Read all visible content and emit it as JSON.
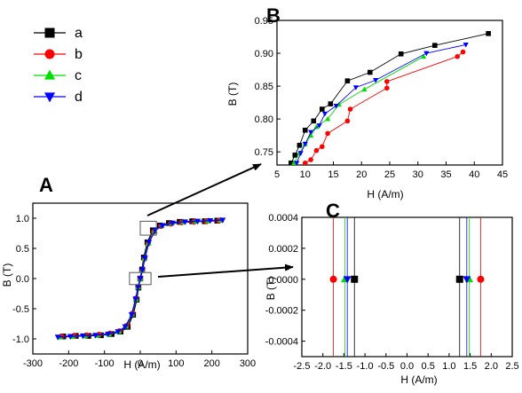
{
  "legend": {
    "items": [
      {
        "label": "a",
        "color": "#000000",
        "marker": "square"
      },
      {
        "label": "b",
        "color": "#ff0000",
        "marker": "circle"
      },
      {
        "label": "c",
        "color": "#00dd00",
        "marker": "triangle-up"
      },
      {
        "label": "d",
        "color": "#0000ff",
        "marker": "triangle-down"
      }
    ]
  },
  "chart_data": [
    {
      "panel_label": "A",
      "type": "line",
      "xlabel": "H (A/m)",
      "ylabel": "B (T)",
      "xlim": [
        -300,
        300
      ],
      "ylim": [
        -1.25,
        1.25
      ],
      "xticks": [
        -300,
        -200,
        -100,
        0,
        100,
        200,
        300
      ],
      "yticks": [
        -1.0,
        -0.5,
        0.0,
        0.5,
        1.0
      ],
      "xtick_labels": [
        "-300",
        "-200",
        "-100",
        "0",
        "100",
        "200",
        "300"
      ],
      "ytick_labels": [
        "-1.0",
        "-0.5",
        "0.0",
        "0.5",
        "1.0"
      ],
      "grid": false,
      "series": [
        {
          "name": "a",
          "color": "#000000",
          "marker": "square",
          "x": [
            -215,
            -180,
            -145,
            -110,
            -80,
            -55,
            -35,
            -20,
            -10,
            -5,
            0,
            5,
            10,
            20,
            35,
            55,
            80,
            110,
            145,
            180,
            215
          ],
          "y": [
            -0.96,
            -0.95,
            -0.95,
            -0.94,
            -0.92,
            -0.88,
            -0.8,
            -0.6,
            -0.35,
            -0.15,
            0.0,
            0.15,
            0.35,
            0.6,
            0.8,
            0.88,
            0.92,
            0.94,
            0.95,
            0.95,
            0.96
          ]
        },
        {
          "name": "b",
          "color": "#ff0000",
          "marker": "circle",
          "x": [
            -220,
            -185,
            -150,
            -115,
            -85,
            -58,
            -38,
            -22,
            -12,
            -6,
            0,
            6,
            12,
            22,
            38,
            58,
            85,
            115,
            150,
            185,
            220
          ],
          "y": [
            -0.96,
            -0.95,
            -0.94,
            -0.93,
            -0.91,
            -0.87,
            -0.78,
            -0.58,
            -0.33,
            -0.14,
            0.0,
            0.14,
            0.33,
            0.58,
            0.78,
            0.87,
            0.91,
            0.93,
            0.94,
            0.95,
            0.96
          ]
        },
        {
          "name": "c",
          "color": "#00dd00",
          "marker": "triangle-up",
          "x": [
            -225,
            -190,
            -155,
            -120,
            -88,
            -60,
            -40,
            -23,
            -12,
            -6,
            0,
            6,
            12,
            23,
            40,
            60,
            88,
            120,
            155,
            190,
            225
          ],
          "y": [
            -0.97,
            -0.96,
            -0.95,
            -0.94,
            -0.92,
            -0.88,
            -0.79,
            -0.59,
            -0.34,
            -0.14,
            0.0,
            0.14,
            0.34,
            0.59,
            0.79,
            0.88,
            0.92,
            0.94,
            0.95,
            0.96,
            0.97
          ]
        },
        {
          "name": "d",
          "color": "#0000ff",
          "marker": "triangle-down",
          "x": [
            -230,
            -195,
            -160,
            -125,
            -90,
            -62,
            -42,
            -24,
            -13,
            -6,
            0,
            6,
            13,
            24,
            42,
            62,
            90,
            125,
            160,
            195,
            230
          ],
          "y": [
            -0.97,
            -0.96,
            -0.95,
            -0.94,
            -0.92,
            -0.88,
            -0.8,
            -0.6,
            -0.34,
            -0.14,
            0.0,
            0.14,
            0.34,
            0.6,
            0.8,
            0.88,
            0.92,
            0.94,
            0.95,
            0.96,
            0.97
          ]
        }
      ],
      "zoom_boxes": [
        {
          "xlim": [
            0,
            45
          ],
          "ylim": [
            0.72,
            0.95
          ],
          "target": "B"
        },
        {
          "xlim": [
            -30,
            30
          ],
          "ylim": [
            -0.1,
            0.1
          ],
          "target": "C"
        }
      ]
    },
    {
      "panel_label": "B",
      "type": "line",
      "xlabel": "H (A/m)",
      "ylabel": "B (T)",
      "xlim": [
        5,
        45
      ],
      "ylim": [
        0.73,
        0.95
      ],
      "xticks": [
        5,
        10,
        15,
        20,
        25,
        30,
        35,
        40,
        45
      ],
      "yticks": [
        0.75,
        0.8,
        0.85,
        0.9,
        0.95
      ],
      "xtick_labels": [
        "5",
        "10",
        "15",
        "20",
        "25",
        "30",
        "35",
        "40",
        "45"
      ],
      "ytick_labels": [
        "0.75",
        "0.80",
        "0.85",
        "0.90",
        "0.95"
      ],
      "grid": false,
      "series": [
        {
          "name": "a",
          "color": "#000000",
          "marker": "square",
          "x": [
            7.5,
            8.2,
            9.0,
            10.0,
            11.5,
            13.0,
            14.5,
            17.5,
            21.5,
            27.0,
            33.0,
            42.5
          ],
          "y": [
            0.733,
            0.745,
            0.76,
            0.783,
            0.797,
            0.815,
            0.823,
            0.858,
            0.871,
            0.899,
            0.912,
            0.93
          ]
        },
        {
          "name": "b",
          "color": "#ff0000",
          "marker": "circle",
          "x": [
            10.0,
            11.0,
            12.0,
            13.0,
            14.0,
            17.5,
            18.0,
            24.5,
            24.5,
            37.0,
            38.0
          ],
          "y": [
            0.733,
            0.738,
            0.752,
            0.758,
            0.778,
            0.797,
            0.815,
            0.847,
            0.857,
            0.895,
            0.902
          ]
        },
        {
          "name": "c",
          "color": "#00dd00",
          "marker": "triangle-up",
          "x": [
            8.0,
            9.0,
            10.0,
            11.0,
            12.0,
            14.0,
            16.0,
            20.5,
            31.0
          ],
          "y": [
            0.733,
            0.748,
            0.762,
            0.775,
            0.788,
            0.8,
            0.822,
            0.845,
            0.895
          ]
        },
        {
          "name": "d",
          "color": "#0000ff",
          "marker": "triangle-down",
          "x": [
            8.5,
            9.2,
            10.0,
            11.0,
            12.5,
            13.5,
            15.5,
            19.0,
            22.5,
            31.5,
            38.5
          ],
          "y": [
            0.733,
            0.748,
            0.762,
            0.78,
            0.79,
            0.808,
            0.82,
            0.848,
            0.859,
            0.9,
            0.913
          ]
        }
      ]
    },
    {
      "panel_label": "C",
      "type": "scatter",
      "xlabel": "H (A/m)",
      "ylabel": "B (T)",
      "xlim": [
        -2.5,
        2.5
      ],
      "ylim": [
        -0.0005,
        0.0004
      ],
      "xticks": [
        -2.5,
        -2.0,
        -1.5,
        -1.0,
        -0.5,
        0.0,
        0.5,
        1.0,
        1.5,
        2.0,
        2.5
      ],
      "yticks": [
        -0.0004,
        -0.0002,
        0.0,
        0.0002,
        0.0004
      ],
      "xtick_labels": [
        "-2.5",
        "-2.0",
        "-1.5",
        "-1.0",
        "-0.5",
        "0.0",
        "0.5",
        "1.0",
        "1.5",
        "2.0",
        "2.5"
      ],
      "ytick_labels": [
        "-0.0004",
        "-0.0002",
        "0.0000",
        "0.0002",
        "0.0004"
      ],
      "grid": false,
      "series": [
        {
          "name": "a",
          "color": "#000000",
          "marker": "square",
          "x": [
            -1.25,
            1.25
          ],
          "y": [
            0.0,
            0.0
          ]
        },
        {
          "name": "b",
          "color": "#ff0000",
          "marker": "circle",
          "x": [
            -1.75,
            1.75
          ],
          "y": [
            0.0,
            0.0
          ]
        },
        {
          "name": "c",
          "color": "#00dd00",
          "marker": "triangle-up",
          "x": [
            -1.48,
            1.48
          ],
          "y": [
            0.0,
            0.0
          ]
        },
        {
          "name": "d",
          "color": "#0000ff",
          "marker": "triangle-down",
          "x": [
            -1.42,
            1.42
          ],
          "y": [
            0.0,
            0.0
          ]
        }
      ]
    }
  ]
}
